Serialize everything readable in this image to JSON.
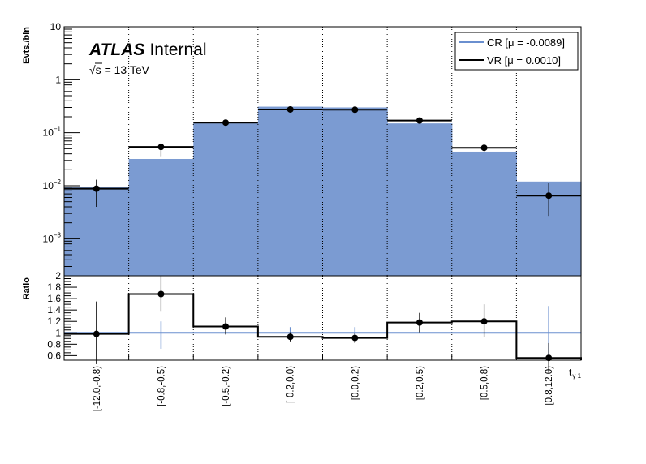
{
  "chart_data": {
    "type": "histogram",
    "labels": {
      "experiment": "ATLAS",
      "status": "Internal",
      "sqrt_symbol": "√s",
      "energy": " = 13 TeV",
      "ylabel_top": "Evts./bin",
      "ylabel_bottom": "Ratio",
      "xlabel": "t",
      "xlabel_sub": "γ 1"
    },
    "categories": [
      "[-12.0,-0.8)",
      "[-0.8,-0.5)",
      "[-0.5,-0.2)",
      "[-0.2,0.0)",
      "[0.0,0.2)",
      "[0.2,0.5)",
      "[0.5,0.8)",
      "[0.8,12.0)"
    ],
    "top_panel": {
      "yscale": "log",
      "ylim": [
        0.0002,
        10
      ],
      "yticks": [
        {
          "value": 10,
          "base": "10",
          "exp": ""
        },
        {
          "value": 1,
          "base": "1",
          "exp": ""
        },
        {
          "value": 0.1,
          "base": "10",
          "exp": "−1"
        },
        {
          "value": 0.01,
          "base": "10",
          "exp": "−2"
        },
        {
          "value": 0.001,
          "base": "10",
          "exp": "−3"
        }
      ],
      "series": [
        {
          "name": "CR [μ = -0.0089]",
          "kind": "filled-histogram",
          "color": "#7b9bd2",
          "legend_line_color": "#6a8fcf",
          "values": [
            0.0095,
            0.032,
            0.15,
            0.31,
            0.3,
            0.15,
            0.044,
            0.012
          ]
        },
        {
          "name": "VR [μ = 0.0010]",
          "kind": "points-with-errors",
          "color": "#000000",
          "values": [
            0.0088,
            0.054,
            0.155,
            0.275,
            0.272,
            0.17,
            0.052,
            0.0065
          ],
          "err_low": [
            0.004,
            0.036,
            0.14,
            0.255,
            0.25,
            0.155,
            0.044,
            0.0027
          ],
          "err_high": [
            0.013,
            0.063,
            0.165,
            0.295,
            0.29,
            0.185,
            0.058,
            0.0115
          ]
        }
      ]
    },
    "ratio_panel": {
      "ylim": [
        0.52,
        2.0
      ],
      "yticks": [
        "2",
        "1.8",
        "1.6",
        "1.4",
        "1.2",
        "1",
        "0.8",
        "0.6"
      ],
      "ytick_values": [
        2.0,
        1.8,
        1.6,
        1.4,
        1.2,
        1.0,
        0.8,
        0.6
      ],
      "reference_value": 1.0,
      "values": [
        0.98,
        1.68,
        1.11,
        0.93,
        0.91,
        1.18,
        1.2,
        0.56
      ],
      "err_low": [
        0.45,
        1.37,
        0.97,
        0.85,
        0.82,
        1.01,
        0.92,
        0.3
      ],
      "err_high": [
        1.55,
        2.0,
        1.27,
        1.01,
        1.0,
        1.35,
        1.5,
        0.82
      ],
      "ref_err_low": [
        1.0,
        0.72,
        1.0,
        1.0,
        0.95,
        1.0,
        1.0,
        0.56
      ],
      "ref_err_high": [
        1.0,
        1.2,
        1.0,
        1.1,
        1.1,
        1.0,
        1.0,
        1.47
      ]
    }
  }
}
